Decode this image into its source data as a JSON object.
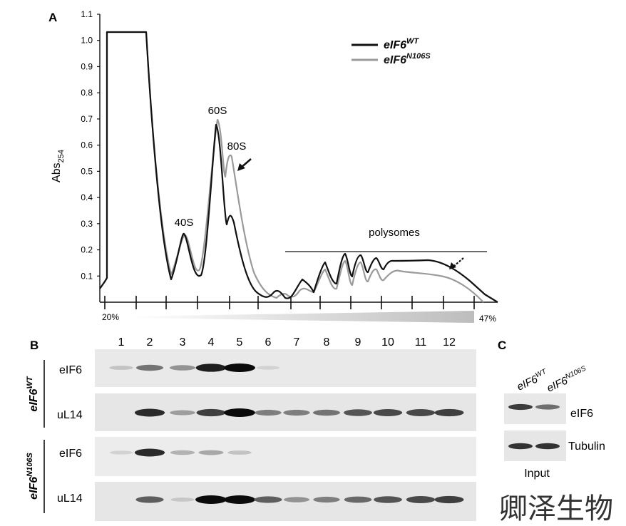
{
  "panels": {
    "a_label": "A",
    "b_label": "B",
    "c_label": "C"
  },
  "chart_data": {
    "type": "line",
    "title": "",
    "ylabel_main": "Abs",
    "ylabel_sub": "254",
    "ylim": [
      0,
      1.1
    ],
    "yticks": [
      "0.1",
      "0.2",
      "0.3",
      "0.4",
      "0.5",
      "0.6",
      "0.7",
      "0.8",
      "0.9",
      "1.0",
      "1.1"
    ],
    "ytick_values": [
      0.1,
      0.2,
      0.3,
      0.4,
      0.5,
      0.6,
      0.7,
      0.8,
      0.9,
      1.0,
      1.1
    ],
    "gradient_start": "20%",
    "gradient_end": "47%",
    "peaks": {
      "p40": "40S",
      "p60": "60S",
      "p80": "80S",
      "polysomes": "polysomes"
    },
    "legend": {
      "position": "top-right"
    },
    "series": [
      {
        "base": "eIF6",
        "sup": "WT",
        "color": "#111111",
        "peak_values": {
          "40S": 0.26,
          "60S": 0.68,
          "80S": 0.31
        }
      },
      {
        "base": "eIF6",
        "sup": "N106S",
        "color": "#9a9a9a",
        "peak_values": {
          "40S": 0.26,
          "60S": 0.71,
          "80S": 0.57
        }
      }
    ]
  },
  "blot_b": {
    "lanes": [
      "1",
      "2",
      "3",
      "4",
      "5",
      "6",
      "7",
      "8",
      "9",
      "10",
      "11",
      "12"
    ],
    "groups": [
      {
        "base": "eIF6",
        "sup": "WT",
        "rows": [
          {
            "label": "eIF6",
            "intensities": [
              0.12,
              0.5,
              0.35,
              0.9,
              1.0,
              0.05,
              0,
              0,
              0,
              0,
              0,
              0
            ]
          },
          {
            "label": "uL14",
            "intensities": [
              0,
              0.85,
              0.3,
              0.75,
              1.0,
              0.45,
              0.45,
              0.5,
              0.65,
              0.7,
              0.7,
              0.75
            ]
          }
        ]
      },
      {
        "base": "eIF6",
        "sup": "N106S",
        "rows": [
          {
            "label": "eIF6",
            "intensities": [
              0.05,
              0.85,
              0.2,
              0.25,
              0.12,
              0,
              0,
              0,
              0,
              0,
              0,
              0
            ]
          },
          {
            "label": "uL14",
            "intensities": [
              0,
              0.6,
              0.1,
              1.0,
              1.0,
              0.6,
              0.35,
              0.45,
              0.55,
              0.65,
              0.7,
              0.75
            ]
          }
        ]
      }
    ]
  },
  "blot_c": {
    "lane_labels": [
      {
        "base": "eIF6",
        "sup": "WT"
      },
      {
        "base": "eIF6",
        "sup": "N106S"
      }
    ],
    "rows": [
      {
        "label": "eIF6",
        "intensities": [
          0.8,
          0.55
        ]
      },
      {
        "label": "Tubulin",
        "intensities": [
          0.85,
          0.85
        ]
      }
    ],
    "caption": "Input"
  },
  "watermark": "卿泽生物"
}
